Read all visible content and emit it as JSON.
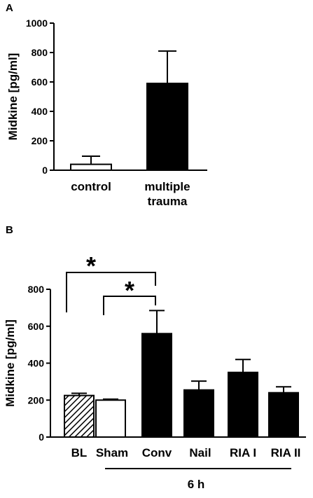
{
  "chart_data": [
    {
      "panel": "A",
      "type": "bar",
      "ylabel": "Midkine [pg/ml]",
      "ylim": [
        0,
        1000
      ],
      "yticks": [
        0,
        200,
        400,
        600,
        800,
        1000
      ],
      "categories": [
        "control",
        "multiple trauma"
      ],
      "category_labels": [
        [
          "control"
        ],
        [
          "multiple",
          "trauma"
        ]
      ],
      "values": [
        40,
        590
      ],
      "error": [
        55,
        220
      ],
      "fill": [
        "white",
        "black"
      ]
    },
    {
      "panel": "B",
      "type": "bar",
      "ylabel": "Midkine [pg/ml]",
      "ylim": [
        0,
        800
      ],
      "yticks": [
        0,
        200,
        400,
        600,
        800
      ],
      "categories": [
        "BL",
        "Sham",
        "Conv",
        "Nail",
        "RIA I",
        "RIA II"
      ],
      "values": [
        225,
        200,
        560,
        255,
        350,
        240
      ],
      "error": [
        12,
        5,
        125,
        48,
        70,
        32
      ],
      "fill": [
        "hatched",
        "white",
        "black",
        "black",
        "black",
        "black"
      ],
      "group_label": "6 h",
      "significance": [
        {
          "from": "BL",
          "to": "Conv",
          "label": "*"
        },
        {
          "from": "Sham",
          "to": "Conv",
          "label": "*"
        }
      ]
    }
  ]
}
